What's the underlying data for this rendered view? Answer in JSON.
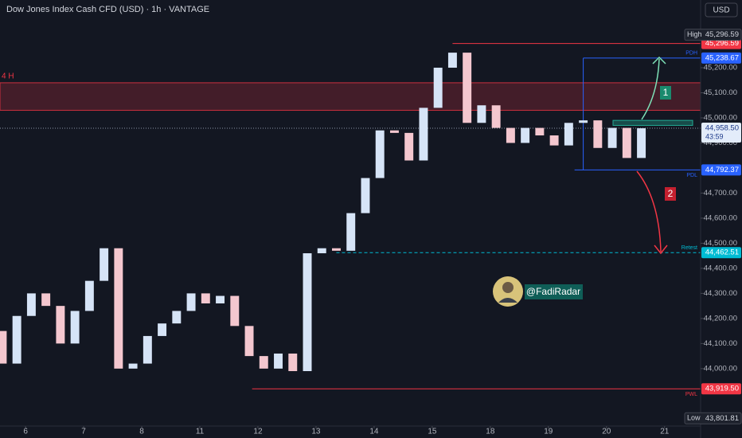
{
  "header": {
    "title": "Dow Jones Index Cash CFD (USD) · 1h · VANTAGE",
    "currency": "USD"
  },
  "chart_data": {
    "type": "candlestick",
    "x": [
      -0.4,
      -0.15,
      0.1,
      0.35,
      0.6,
      0.85,
      1.1,
      1.35,
      1.6,
      1.85,
      2.1,
      2.35,
      2.6,
      2.85,
      3.1,
      3.35,
      3.6,
      3.85,
      4.1,
      4.35,
      4.6,
      4.85,
      5.1,
      5.35,
      5.6,
      5.85,
      6.1,
      6.35,
      6.6,
      6.85,
      7.1,
      7.35,
      7.6,
      7.85,
      8.1,
      8.35,
      8.6,
      8.85,
      9.1,
      9.35,
      9.6,
      9.85,
      10.1,
      10.35,
      10.6
    ],
    "open": [
      44150,
      44020,
      44210,
      44300,
      44250,
      44100,
      44230,
      44350,
      44480,
      44000,
      44020,
      44130,
      44180,
      44230,
      44300,
      44260,
      44290,
      44170,
      44050,
      44000,
      44060,
      43990,
      44460,
      44480,
      44470,
      44620,
      44760,
      44950,
      44940,
      44830,
      45040,
      45200,
      45260,
      44980,
      45050,
      44960,
      44900,
      44960,
      44930,
      44890,
      44980,
      44990,
      44880,
      44960,
      44840
    ],
    "high": {
      "name": "High",
      "price": {
        "value": 45296.59,
        "label": "45,296.59"
      }
    },
    "low": {
      "name": "Low",
      "price": {
        "value": 43801.81,
        "label": "43,801.81"
      }
    },
    "close": [
      44020,
      44210,
      44300,
      44250,
      44100,
      44230,
      44350,
      44480,
      44000,
      44020,
      44130,
      44180,
      44230,
      44300,
      44260,
      44290,
      44170,
      44050,
      44000,
      44060,
      43990,
      44460,
      44480,
      44470,
      44620,
      44760,
      44950,
      44940,
      44830,
      45040,
      45200,
      45260,
      44980,
      45050,
      44960,
      44900,
      44960,
      44930,
      44890,
      44980,
      44990,
      44880,
      44960,
      44840,
      44958.5
    ],
    "up_color": "#d6e4f7",
    "down_color": "#f4c7cf",
    "xlim": [
      -0.44,
      11.62
    ],
    "xticks": [
      {
        "value": 0,
        "label": "6"
      },
      {
        "value": 1,
        "label": "7"
      },
      {
        "value": 2,
        "label": "8"
      },
      {
        "value": 3,
        "label": "11"
      },
      {
        "value": 4,
        "label": "12"
      },
      {
        "value": 5,
        "label": "13"
      },
      {
        "value": 6,
        "label": "14"
      },
      {
        "value": 7,
        "label": "15"
      },
      {
        "value": 8,
        "label": "18"
      },
      {
        "value": 9,
        "label": "19"
      },
      {
        "value": 10,
        "label": "20"
      },
      {
        "value": 11,
        "label": "21"
      }
    ],
    "ylim": [
      43755,
      45470
    ],
    "yticks": [
      {
        "value": 44000,
        "label": "44,000.00"
      },
      {
        "value": 44100,
        "label": "44,100.00"
      },
      {
        "value": 44200,
        "label": "44,200.00"
      },
      {
        "value": 44300,
        "label": "44,300.00"
      },
      {
        "value": 44400,
        "label": "44,400.00"
      },
      {
        "value": 44500,
        "label": "44,500.00"
      },
      {
        "value": 44600,
        "label": "44,600.00"
      },
      {
        "value": 44700,
        "label": "44,700.00"
      },
      {
        "value": 44900,
        "label": "44,900.00"
      },
      {
        "value": 45000,
        "label": "45,000.00"
      },
      {
        "value": 45100,
        "label": "45,100.00"
      },
      {
        "value": 45200,
        "label": "45,200.00"
      }
    ],
    "levels": [
      {
        "name": "PWH",
        "price": {
          "value": 45296.59,
          "label": "45,296.59"
        },
        "start": 7.35,
        "color": "#f23645"
      },
      {
        "name": "PDH",
        "price": {
          "value": 45238.67,
          "label": "45,238.67"
        },
        "start": 9.6,
        "color": "#2962ff"
      },
      {
        "name": "PDL",
        "price": {
          "value": 44792.37,
          "label": "44,792.37"
        },
        "start": 9.45,
        "color": "#2962ff"
      },
      {
        "name": "Retest",
        "price": {
          "value": 44462.51,
          "label": "44,462.51"
        },
        "start": 5.35,
        "color": "#00bcd4"
      },
      {
        "name": "PWL",
        "price": {
          "value": 43919.5,
          "label": "43,919.50"
        },
        "start": 3.9,
        "color": "#f23645"
      }
    ],
    "zone": {
      "name": "4 H",
      "range": [
        45030,
        45140
      ],
      "color": "#f23645"
    },
    "green_zone": [
      44970,
      44990
    ],
    "last": {
      "price": {
        "value": 44958.5,
        "label": "44,958.50"
      },
      "countdown": "43:59"
    },
    "scenarios": [
      "1",
      "2"
    ]
  },
  "watermark": "@FadiRadar"
}
